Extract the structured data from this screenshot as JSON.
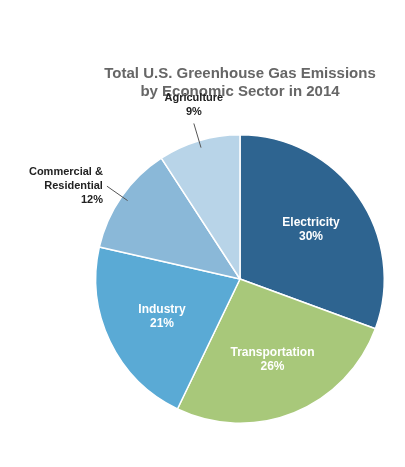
{
  "chart_data": {
    "type": "pie",
    "title": "Total U.S. Greenhouse Gas Emissions\nby Economic Sector in 2014",
    "categories": [
      "Electricity",
      "Transportation",
      "Industry",
      "Commercial &\nResidential",
      "Agriculture"
    ],
    "values": [
      30,
      26,
      21,
      12,
      9
    ],
    "value_labels": [
      "30%",
      "26%",
      "21%",
      "12%",
      "9%"
    ],
    "colors": [
      "#2e6490",
      "#a8c87a",
      "#5aaad5",
      "#8ab8d8",
      "#b8d4e8"
    ],
    "data_labels": true
  }
}
